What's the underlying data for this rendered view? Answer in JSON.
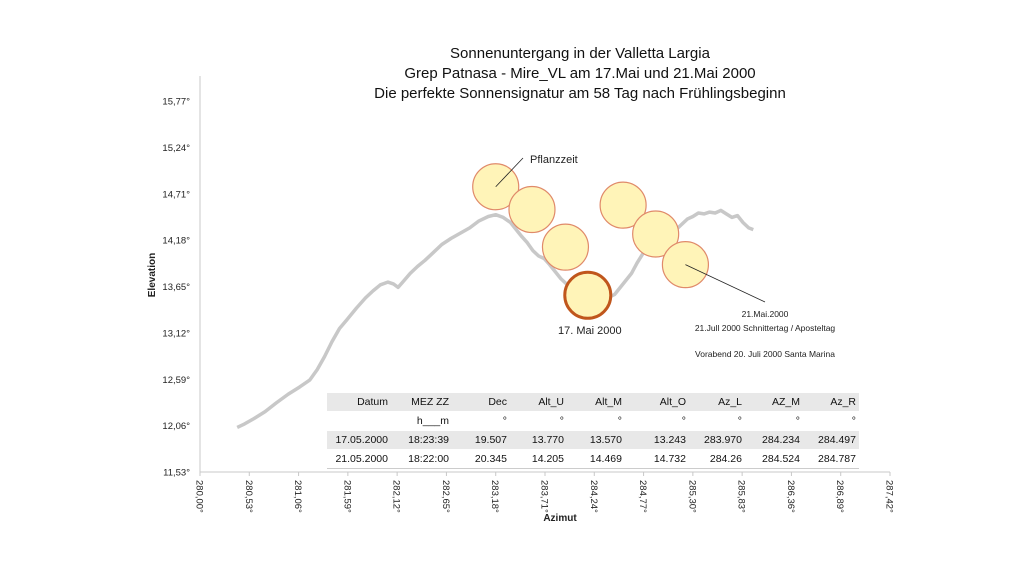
{
  "title_lines": [
    "Sonnenuntergang in der Valletta Largia",
    "Grep Patnasa - Mire_VL  am 17.Mai und 21.Mai 2000",
    "Die perfekte Sonnensignatur am 58 Tag nach Frühlingsbeginn"
  ],
  "chart_data": {
    "type": "line",
    "xlabel": "Azimut",
    "ylabel": "Elevation",
    "xlim": [
      280.0,
      287.42
    ],
    "ylim": [
      11.53,
      15.77
    ],
    "x_ticks": [
      "280,00°",
      "280,53°",
      "281,06°",
      "281,59°",
      "282,12°",
      "282,65°",
      "283,18°",
      "283,71°",
      "284,24°",
      "284,77°",
      "285,30°",
      "285,83°",
      "286,36°",
      "286,89°",
      "287,42°"
    ],
    "y_ticks": [
      "11,53°",
      "12,06°",
      "12,59°",
      "13,12°",
      "13,65°",
      "14,18°",
      "14,71°",
      "15,24°",
      "15,77°"
    ],
    "horizon_color": "#c8c8c8",
    "horizon": [
      [
        280.4,
        12.04
      ],
      [
        280.48,
        12.08
      ],
      [
        280.58,
        12.14
      ],
      [
        280.7,
        12.22
      ],
      [
        280.82,
        12.32
      ],
      [
        280.95,
        12.42
      ],
      [
        281.07,
        12.5
      ],
      [
        281.18,
        12.58
      ],
      [
        281.26,
        12.7
      ],
      [
        281.34,
        12.85
      ],
      [
        281.42,
        13.02
      ],
      [
        281.5,
        13.17
      ],
      [
        281.58,
        13.27
      ],
      [
        281.68,
        13.4
      ],
      [
        281.78,
        13.52
      ],
      [
        281.86,
        13.6
      ],
      [
        281.94,
        13.67
      ],
      [
        282.02,
        13.7
      ],
      [
        282.08,
        13.68
      ],
      [
        282.13,
        13.64
      ],
      [
        282.18,
        13.7
      ],
      [
        282.26,
        13.8
      ],
      [
        282.34,
        13.88
      ],
      [
        282.42,
        13.95
      ],
      [
        282.5,
        14.03
      ],
      [
        282.6,
        14.13
      ],
      [
        282.7,
        14.2
      ],
      [
        282.8,
        14.26
      ],
      [
        282.9,
        14.32
      ],
      [
        283.0,
        14.4
      ],
      [
        283.1,
        14.45
      ],
      [
        283.18,
        14.47
      ],
      [
        283.26,
        14.44
      ],
      [
        283.34,
        14.38
      ],
      [
        283.4,
        14.3
      ],
      [
        283.46,
        14.22
      ],
      [
        283.52,
        14.15
      ],
      [
        283.58,
        14.06
      ],
      [
        283.64,
        14.0
      ],
      [
        283.7,
        13.97
      ],
      [
        283.76,
        13.9
      ],
      [
        283.82,
        13.82
      ],
      [
        283.88,
        13.74
      ],
      [
        283.94,
        13.68
      ],
      [
        284.0,
        13.65
      ],
      [
        284.06,
        13.6
      ],
      [
        284.12,
        13.55
      ],
      [
        284.16,
        13.52
      ],
      [
        284.22,
        13.54
      ],
      [
        284.28,
        13.6
      ],
      [
        284.34,
        13.57
      ],
      [
        284.4,
        13.53
      ],
      [
        284.46,
        13.56
      ],
      [
        284.52,
        13.64
      ],
      [
        284.58,
        13.72
      ],
      [
        284.64,
        13.8
      ],
      [
        284.7,
        13.92
      ],
      [
        284.76,
        14.02
      ],
      [
        284.82,
        14.1
      ],
      [
        284.88,
        14.15
      ],
      [
        284.94,
        14.18
      ],
      [
        285.0,
        14.21
      ],
      [
        285.08,
        14.26
      ],
      [
        285.16,
        14.34
      ],
      [
        285.24,
        14.42
      ],
      [
        285.3,
        14.45
      ],
      [
        285.36,
        14.49
      ],
      [
        285.42,
        14.48
      ],
      [
        285.48,
        14.5
      ],
      [
        285.54,
        14.49
      ],
      [
        285.6,
        14.52
      ],
      [
        285.66,
        14.48
      ],
      [
        285.72,
        14.44
      ],
      [
        285.78,
        14.46
      ],
      [
        285.84,
        14.38
      ],
      [
        285.9,
        14.32
      ],
      [
        285.95,
        14.3
      ]
    ],
    "suns": [
      {
        "x": 283.18,
        "y": 14.79,
        "highlight": false
      },
      {
        "x": 283.57,
        "y": 14.53,
        "highlight": false
      },
      {
        "x": 283.93,
        "y": 14.1,
        "highlight": false
      },
      {
        "x": 284.17,
        "y": 13.55,
        "highlight": true
      },
      {
        "x": 284.55,
        "y": 14.58,
        "highlight": false
      },
      {
        "x": 284.9,
        "y": 14.25,
        "highlight": false
      },
      {
        "x": 285.22,
        "y": 13.9,
        "highlight": false
      }
    ],
    "sun_fill": "#fff4b8",
    "sun_stroke": "#e08a6a",
    "sun_highlight_stroke": "#c0561c",
    "annotations": {
      "pflanzzeit": "Pflanzzeit",
      "mai17": "17. Mai 2000",
      "mai21_line1": "21.Mai.2000",
      "mai21_line2": "21.Jull 2000 Schnittertag / Aposteltag",
      "vorabend": "Vorabend 20. Juli 2000 Santa Marina"
    }
  },
  "table": {
    "header": [
      "Datum",
      "MEZ ZZ",
      "Dec",
      "Alt_U",
      "Alt_M",
      "Alt_O",
      "Az_L",
      "AZ_M",
      "Az_R"
    ],
    "units": [
      "",
      "h___m",
      "°",
      "°",
      "°",
      "°",
      "°",
      "°",
      "°"
    ],
    "rows": [
      [
        "17.05.2000",
        "18:23:39",
        "19.507",
        "13.770",
        "13.570",
        "13.243",
        "283.970",
        "284.234",
        "284.497"
      ],
      [
        "21.05.2000",
        "18:22:00",
        "20.345",
        "14.205",
        "14.469",
        "14.732",
        "284.26",
        "284.524",
        "284.787"
      ]
    ]
  }
}
